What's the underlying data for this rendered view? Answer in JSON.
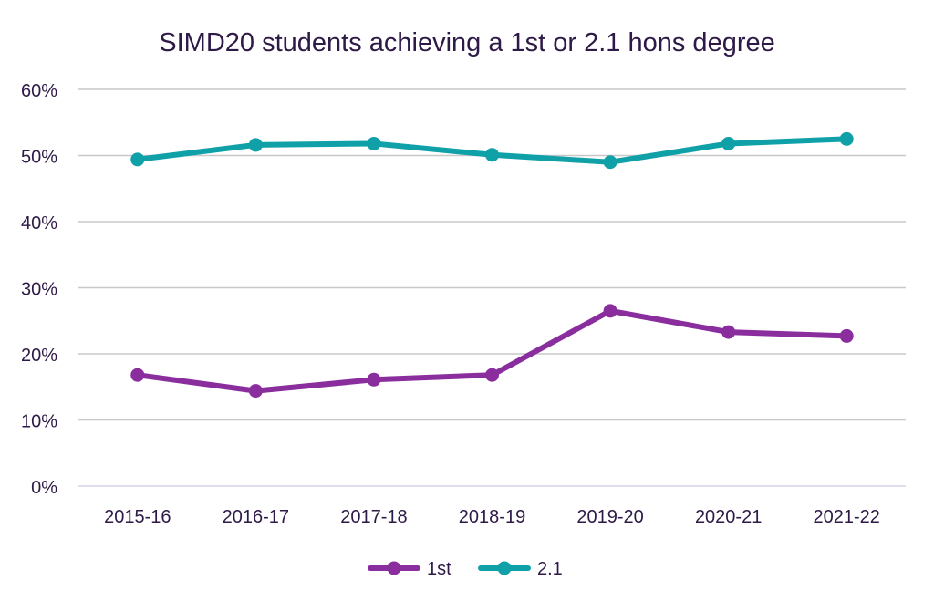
{
  "chart_data": {
    "type": "line",
    "title": "SIMD20 students achieving a 1st or 2.1 hons degree",
    "xlabel": "",
    "ylabel": "",
    "categories": [
      "2015-16",
      "2016-17",
      "2017-18",
      "2018-19",
      "2019-20",
      "2020-21",
      "2021-22"
    ],
    "ylim": [
      0,
      60
    ],
    "yticks": [
      0,
      10,
      20,
      30,
      40,
      50,
      60
    ],
    "ytick_labels": [
      "0%",
      "10%",
      "20%",
      "30%",
      "40%",
      "50%",
      "60%"
    ],
    "grid": true,
    "legend_position": "bottom",
    "series": [
      {
        "name": "1st",
        "color": "#8A2E9E",
        "values": [
          16.8,
          14.4,
          16.1,
          16.8,
          26.5,
          23.3,
          22.7
        ]
      },
      {
        "name": "2.1",
        "color": "#0FA0A8",
        "values": [
          49.4,
          51.6,
          51.8,
          50.1,
          49.0,
          51.8,
          52.5
        ]
      }
    ]
  },
  "colors": {
    "text": "#2E1A47",
    "grid": "#C8C8C8",
    "axis": "#D6D0E6"
  }
}
